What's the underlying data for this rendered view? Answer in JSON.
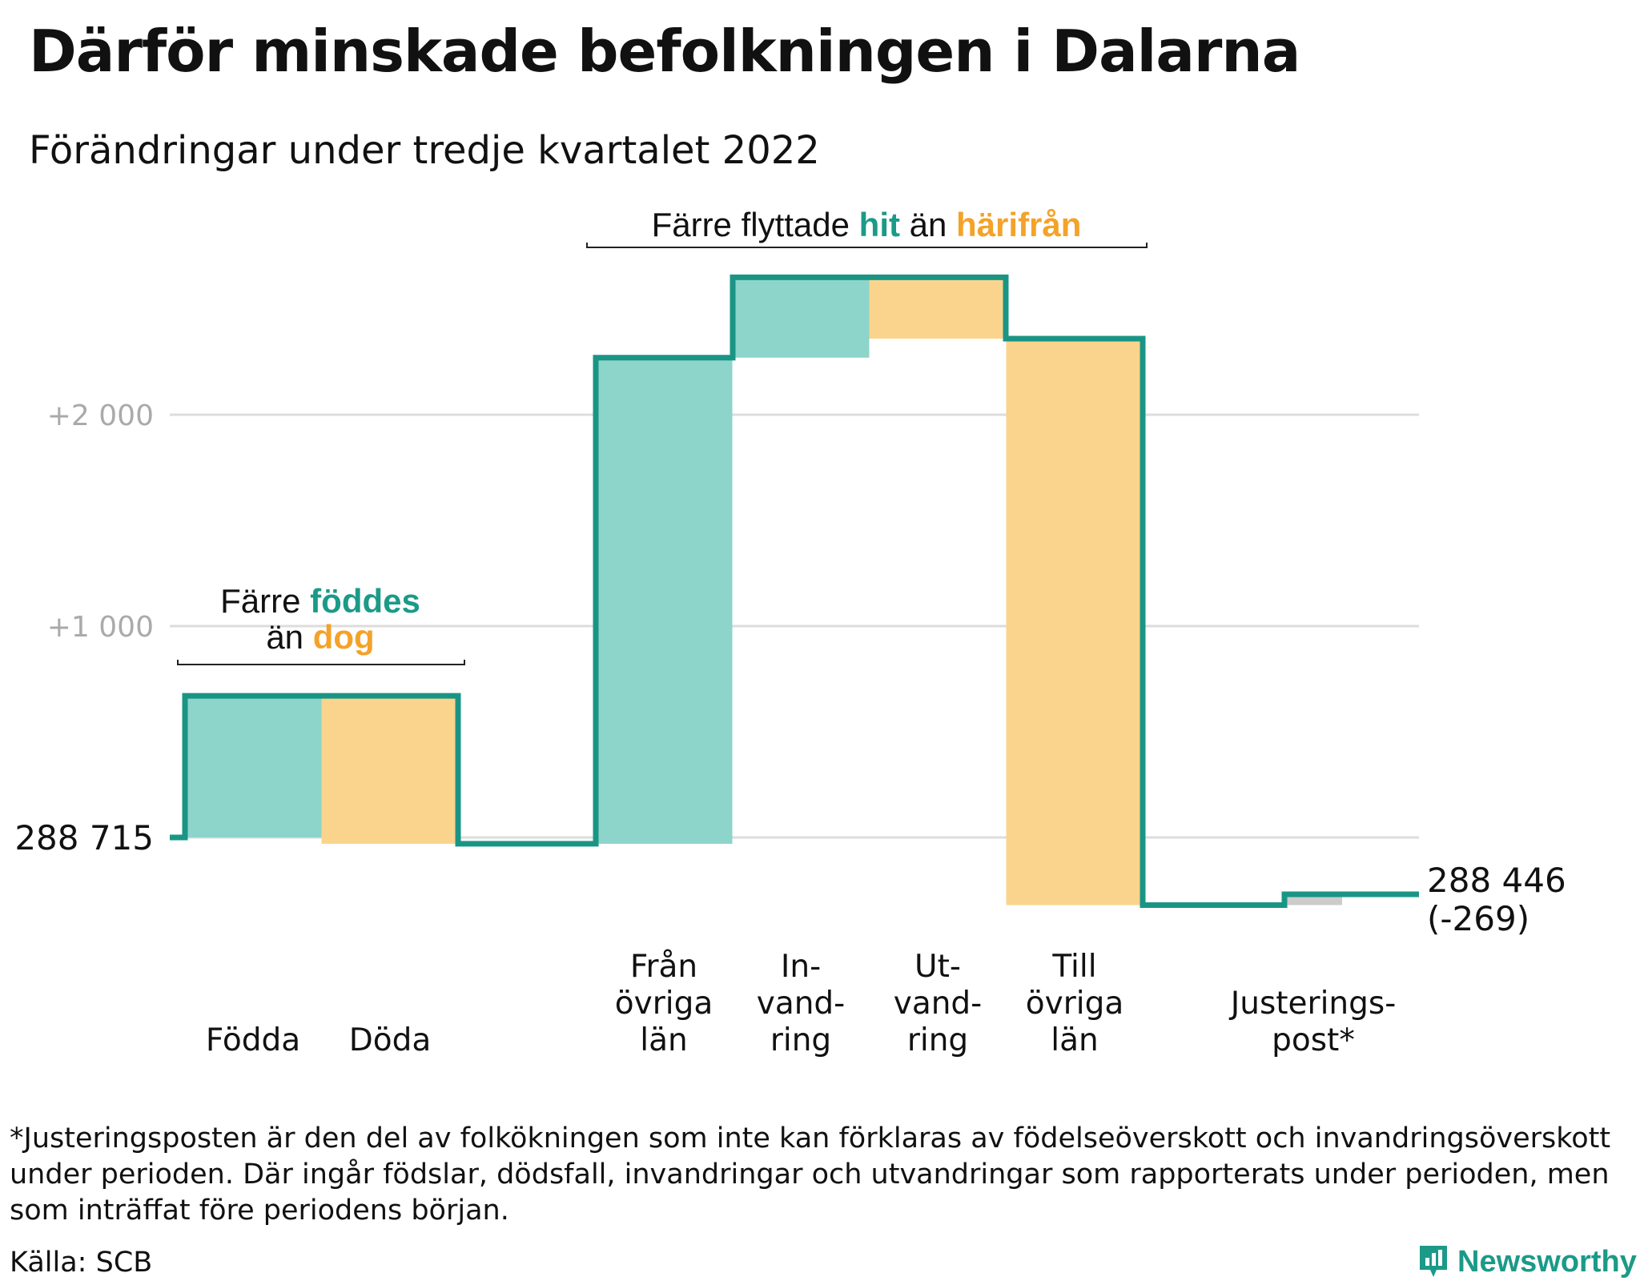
{
  "title": "Därför minskade befolkningen i Dalarna",
  "subtitle": "Förändringar under tredje kvartalet 2022",
  "colors": {
    "line": "#1a9585",
    "inflow": "#8dd4cb",
    "outflow": "#fad48c",
    "adjustment": "#cccccc",
    "grid": "#dddddd",
    "tick_text": "#aaaaaa",
    "teal_text": "#1b9a88",
    "orange_text": "#f4a22a"
  },
  "chart_data": {
    "type": "waterfall",
    "start_value": 288715,
    "start_label": "288 715",
    "end_label_value": "288 446",
    "end_label_change": "(-269)",
    "y_ticks": [
      {
        "value": 1000,
        "label": "+1 000"
      },
      {
        "value": 2000,
        "label": "+2 000"
      }
    ],
    "grid": true,
    "steps": [
      {
        "label_lines": [
          "Födda"
        ],
        "change": 670,
        "kind": "inflow"
      },
      {
        "label_lines": [
          "Döda"
        ],
        "change": -700,
        "kind": "outflow"
      },
      {
        "label_lines": [
          "Från",
          "övriga",
          "län"
        ],
        "change": 2300,
        "kind": "inflow"
      },
      {
        "label_lines": [
          "In-",
          "vand-",
          "ring"
        ],
        "change": 380,
        "kind": "inflow"
      },
      {
        "label_lines": [
          "Ut-",
          "vand-",
          "ring"
        ],
        "change": -290,
        "kind": "outflow"
      },
      {
        "label_lines": [
          "Till",
          "övriga",
          "län"
        ],
        "change": -2680,
        "kind": "outflow"
      },
      {
        "label_lines": [
          "Justerings-",
          "post*"
        ],
        "change": 51,
        "kind": "adjustment"
      }
    ],
    "annotations": [
      {
        "id": "births",
        "parts": [
          [
            "Färre ",
            "plain"
          ],
          [
            "föddes",
            "teal"
          ]
        ],
        "parts2": [
          [
            "än ",
            "plain"
          ],
          [
            "dog",
            "orange"
          ]
        ]
      },
      {
        "id": "migration",
        "parts": [
          [
            "Färre flyttade ",
            "plain"
          ],
          [
            "hit",
            "teal"
          ],
          [
            " än ",
            "plain"
          ],
          [
            "härifrån",
            "orange"
          ]
        ]
      }
    ]
  },
  "footnote": "*Justeringsposten är den del av folkökningen som inte kan förklaras av födelseöverskott och invandringsöverskott under perioden. Där ingår födslar, dödsfall, invandringar och utvandringar som rapporterats under perioden, men som inträffat före periodens början.",
  "source": "Källa: SCB",
  "brand": {
    "name": "Newsworthy",
    "icon": "newsworthy-logo-icon"
  }
}
